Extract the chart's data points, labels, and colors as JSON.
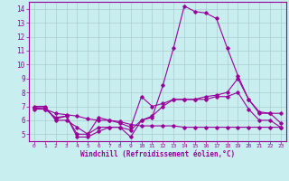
{
  "xlabel": "Windchill (Refroidissement éolien,°C)",
  "xlim": [
    -0.5,
    23.5
  ],
  "ylim": [
    4.5,
    14.5
  ],
  "xticks": [
    0,
    1,
    2,
    3,
    4,
    5,
    6,
    7,
    8,
    9,
    10,
    11,
    12,
    13,
    14,
    15,
    16,
    17,
    18,
    19,
    20,
    21,
    22,
    23
  ],
  "yticks": [
    5,
    6,
    7,
    8,
    9,
    10,
    11,
    12,
    13,
    14
  ],
  "bg_color": "#c8eef0",
  "line_color": "#990099",
  "grid_color": "#aacccc",
  "series": [
    {
      "x": [
        0,
        1,
        2,
        3,
        4,
        5,
        6,
        7,
        8,
        9,
        10,
        11,
        12,
        13,
        14,
        15,
        16,
        17,
        18,
        19,
        20,
        21,
        22,
        23
      ],
      "y": [
        7.0,
        7.0,
        6.0,
        6.0,
        5.5,
        5.0,
        5.5,
        5.5,
        5.5,
        4.8,
        6.0,
        6.2,
        8.5,
        11.2,
        14.2,
        13.8,
        13.7,
        13.3,
        11.2,
        9.2,
        7.5,
        6.5,
        6.5,
        5.8
      ]
    },
    {
      "x": [
        0,
        1,
        2,
        3,
        4,
        5,
        6,
        7,
        8,
        9,
        10,
        11,
        12,
        13,
        14,
        15,
        16,
        17,
        18,
        19,
        20,
        21,
        22,
        23
      ],
      "y": [
        6.9,
        6.9,
        6.1,
        6.3,
        5.0,
        5.0,
        6.2,
        6.0,
        5.8,
        5.5,
        7.7,
        7.0,
        7.2,
        7.5,
        7.5,
        7.5,
        7.7,
        7.8,
        8.0,
        9.0,
        7.5,
        6.6,
        6.5,
        6.5
      ]
    },
    {
      "x": [
        0,
        1,
        2,
        3,
        4,
        5,
        6,
        7,
        8,
        9,
        10,
        11,
        12,
        13,
        14,
        15,
        16,
        17,
        18,
        19,
        20,
        21,
        22,
        23
      ],
      "y": [
        6.9,
        6.8,
        6.2,
        6.3,
        4.8,
        4.8,
        5.2,
        5.5,
        5.5,
        5.3,
        6.0,
        6.3,
        7.0,
        7.5,
        7.5,
        7.5,
        7.5,
        7.7,
        7.7,
        8.0,
        6.8,
        6.0,
        6.0,
        5.5
      ]
    },
    {
      "x": [
        0,
        1,
        2,
        3,
        4,
        5,
        6,
        7,
        8,
        9,
        10,
        11,
        12,
        13,
        14,
        15,
        16,
        17,
        18,
        19,
        20,
        21,
        22,
        23
      ],
      "y": [
        6.8,
        6.8,
        6.5,
        6.4,
        6.3,
        6.1,
        6.0,
        6.0,
        5.9,
        5.7,
        5.6,
        5.6,
        5.6,
        5.6,
        5.5,
        5.5,
        5.5,
        5.5,
        5.5,
        5.5,
        5.5,
        5.5,
        5.5,
        5.5
      ]
    }
  ]
}
